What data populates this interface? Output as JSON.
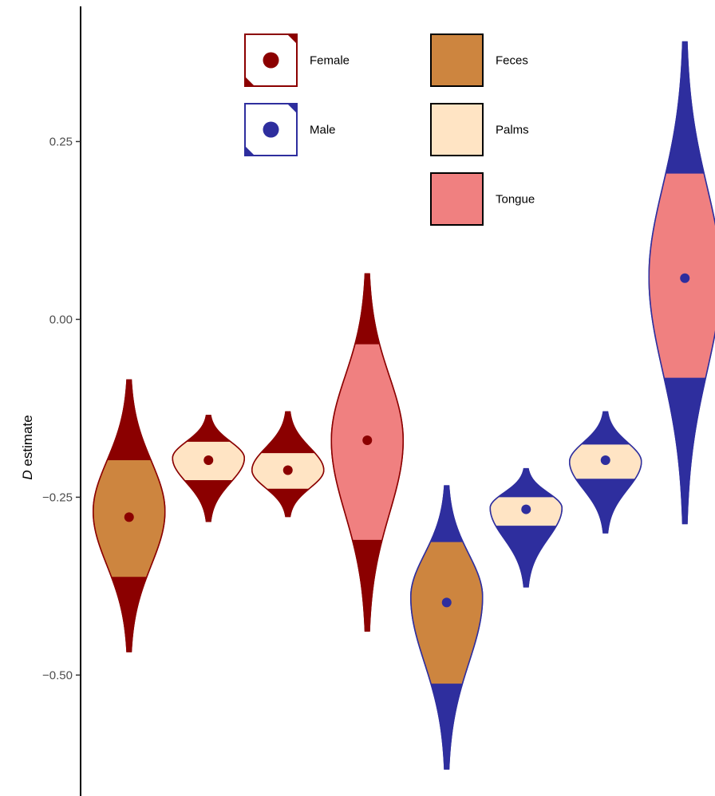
{
  "chart_data": {
    "type": "violin",
    "ylabel_italic": "D",
    "ylabel_rest": " estimate",
    "ylim": [
      -0.67,
      0.44
    ],
    "yticks": [
      {
        "value": 0.25,
        "label": "0.25"
      },
      {
        "value": 0.0,
        "label": "0.00"
      },
      {
        "value": -0.25,
        "label": "−0.25"
      },
      {
        "value": -0.5,
        "label": "−0.50"
      }
    ],
    "colors": {
      "female": "#8b0000",
      "male": "#2e2e9e",
      "feces": "#cd853f",
      "palms": "#ffe4c4",
      "tongue": "#f08080"
    },
    "legend_sex": [
      {
        "key": "female",
        "label": "Female"
      },
      {
        "key": "male",
        "label": "Male"
      }
    ],
    "legend_sample": [
      {
        "key": "feces",
        "label": "Feces"
      },
      {
        "key": "palms",
        "label": "Palms"
      },
      {
        "key": "tongue",
        "label": "Tongue"
      }
    ],
    "series": [
      {
        "sex": "female",
        "sample": "feces",
        "median": -0.278,
        "min": -0.467,
        "max": -0.085,
        "q_low": -0.362,
        "q_high": -0.198,
        "peak": -0.27,
        "width": 0.44
      },
      {
        "sex": "female",
        "sample": "palms",
        "median": -0.198,
        "min": -0.284,
        "max": -0.135,
        "q_low": -0.226,
        "q_high": -0.172,
        "peak": -0.195,
        "width": 0.44
      },
      {
        "sex": "female",
        "sample": "palms",
        "median": -0.212,
        "min": -0.277,
        "max": -0.13,
        "q_low": -0.238,
        "q_high": -0.188,
        "peak": -0.212,
        "width": 0.44
      },
      {
        "sex": "female",
        "sample": "tongue",
        "median": -0.17,
        "min": -0.438,
        "max": 0.064,
        "q_low": -0.31,
        "q_high": -0.035,
        "peak": -0.17,
        "width": 0.44
      },
      {
        "sex": "male",
        "sample": "feces",
        "median": -0.398,
        "min": -0.632,
        "max": -0.234,
        "q_low": -0.512,
        "q_high": -0.313,
        "peak": -0.39,
        "width": 0.44
      },
      {
        "sex": "male",
        "sample": "palms",
        "median": -0.267,
        "min": -0.376,
        "max": -0.21,
        "q_low": -0.29,
        "q_high": -0.25,
        "peak": -0.265,
        "width": 0.44
      },
      {
        "sex": "male",
        "sample": "palms",
        "median": -0.198,
        "min": -0.3,
        "max": -0.13,
        "q_low": -0.224,
        "q_high": -0.176,
        "peak": -0.2,
        "width": 0.44
      },
      {
        "sex": "male",
        "sample": "tongue",
        "median": 0.058,
        "min": -0.287,
        "max": 0.39,
        "q_low": -0.082,
        "q_high": 0.205,
        "peak": 0.06,
        "width": 0.44
      }
    ]
  }
}
